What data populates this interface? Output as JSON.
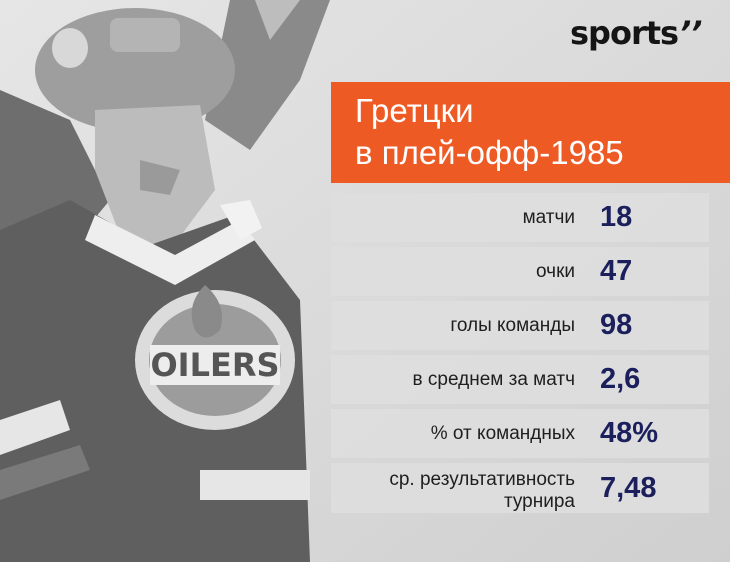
{
  "brand": {
    "logo_text": "sports",
    "logo_mark": "’’"
  },
  "header": {
    "title_line1": "Гретцки",
    "title_line2": "в плей-офф-1985"
  },
  "background": {
    "subject": "hockey player photo (grayscale)",
    "jersey_text": "OILERS",
    "accent_color": "#ee5a24",
    "value_color": "#1b1f5c"
  },
  "stats": [
    {
      "label": "матчи",
      "value": "18"
    },
    {
      "label": "очки",
      "value": "47"
    },
    {
      "label": "голы команды",
      "value": "98"
    },
    {
      "label": "в среднем за матч",
      "value": "2,6"
    },
    {
      "label": "% от командных",
      "value": "48%"
    },
    {
      "label_line1": "ср. результативность",
      "label_line2": "турнира",
      "value": "7,48"
    }
  ]
}
